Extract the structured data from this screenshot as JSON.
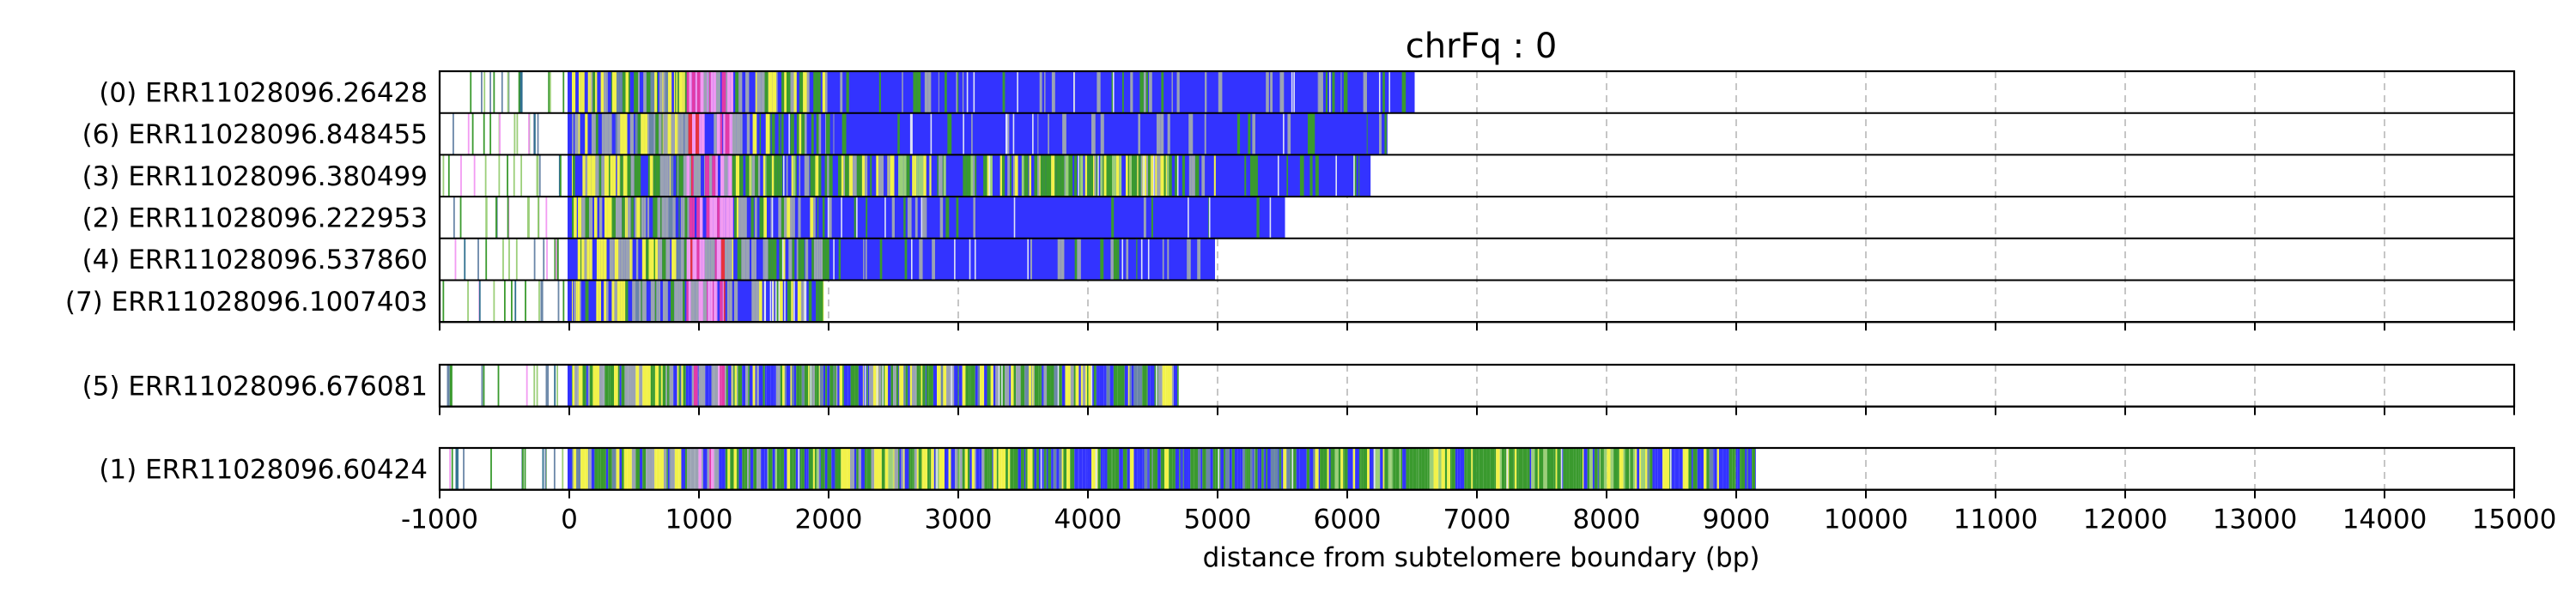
{
  "chart_data": {
    "type": "read-composition-track",
    "title": "chrFq : 0",
    "xlabel": "distance from subtelomere boundary (bp)",
    "xlim": [
      -1000,
      15000
    ],
    "x_ticks": [
      -1000,
      0,
      1000,
      2000,
      3000,
      4000,
      5000,
      6000,
      7000,
      8000,
      9000,
      10000,
      11000,
      12000,
      13000,
      14000,
      15000
    ],
    "grid": "vertical-dashed",
    "colors": {
      "blue": "#3333ff",
      "green": "#3a9a2e",
      "yellow": "#f2f24a",
      "gray": "#9ba3b3",
      "pink": "#f29bf2",
      "magenta": "#e23aa8",
      "red": "#e8323c",
      "slate": "#6a86a8",
      "lightgreen": "#9ccf7a",
      "teal": "#2f6f8f"
    },
    "groups": [
      {
        "tracks": [
          {
            "label": "(0) ERR11028096.26428",
            "start": -1000,
            "end": 6520,
            "profile": "A"
          },
          {
            "label": "(6) ERR11028096.848455",
            "start": -1000,
            "end": 6310,
            "profile": "A"
          },
          {
            "label": "(3) ERR11028096.380499",
            "start": -1000,
            "end": 6180,
            "profile": "B"
          },
          {
            "label": "(2) ERR11028096.222953",
            "start": -1000,
            "end": 5520,
            "profile": "C"
          },
          {
            "label": "(4) ERR11028096.537860",
            "start": -1000,
            "end": 4980,
            "profile": "D"
          },
          {
            "label": "(7) ERR11028096.1007403",
            "start": -1000,
            "end": 1960,
            "profile": "E"
          }
        ]
      },
      {
        "tracks": [
          {
            "label": "(5) ERR11028096.676081",
            "start": -1000,
            "end": 4700,
            "profile": "F"
          }
        ]
      },
      {
        "tracks": [
          {
            "label": "(1) ERR11028096.60424",
            "start": -1000,
            "end": 9150,
            "profile": "G"
          }
        ]
      }
    ]
  }
}
